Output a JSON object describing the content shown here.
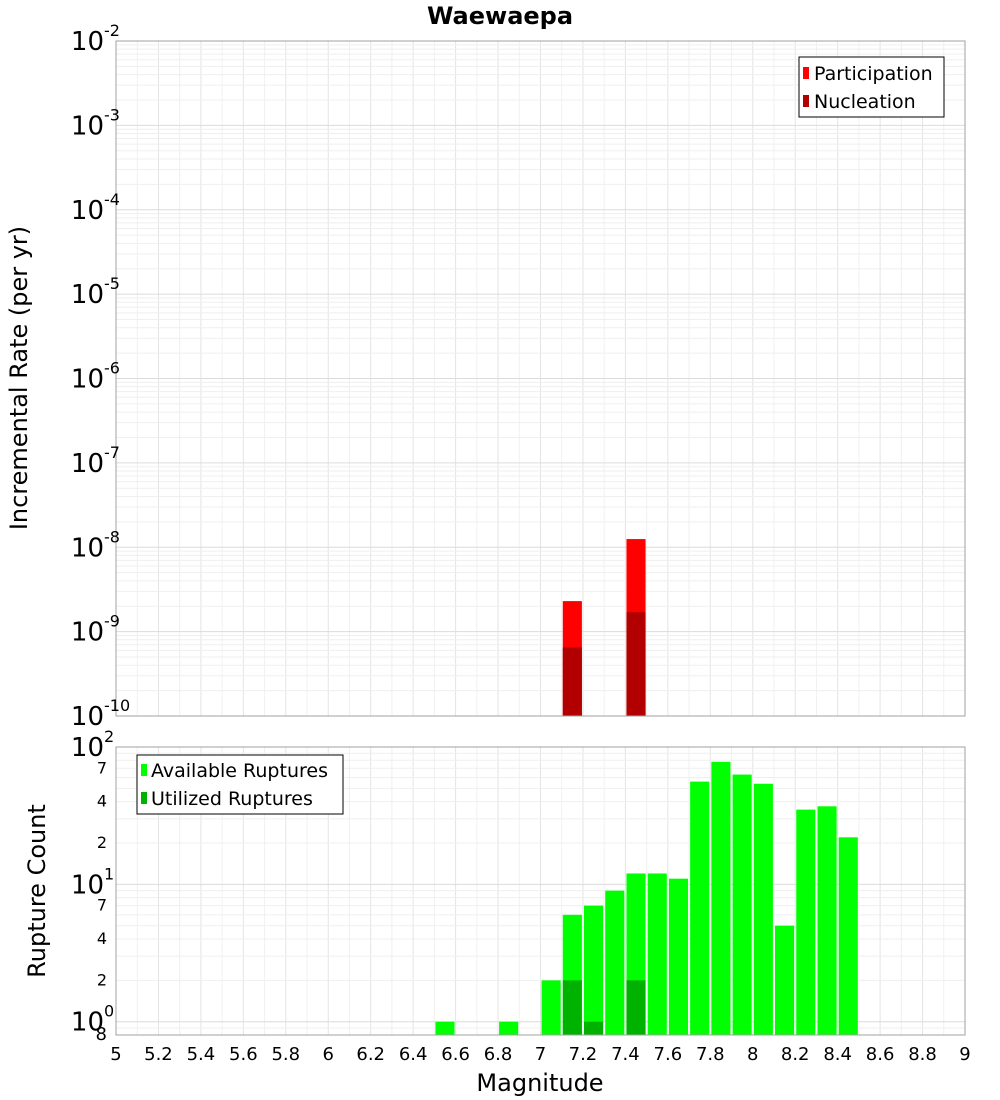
{
  "chart_data": [
    {
      "id": "top",
      "type": "bar",
      "title": "Waewaepa",
      "ylabel": "Incremental Rate (per yr)",
      "xlabel": "",
      "yscale": "log",
      "ylim": [
        1e-10,
        0.01
      ],
      "xlim": [
        5,
        9
      ],
      "grid": true,
      "legend_position": "top-right",
      "bar_width": 0.09,
      "y_ticks": [
        {
          "base": "10",
          "exp": "-10",
          "value": 1e-10
        },
        {
          "base": "10",
          "exp": "-9",
          "value": 1e-09
        },
        {
          "base": "10",
          "exp": "-8",
          "value": 1e-08
        },
        {
          "base": "10",
          "exp": "-7",
          "value": 1e-07
        },
        {
          "base": "10",
          "exp": "-6",
          "value": 1e-06
        },
        {
          "base": "10",
          "exp": "-5",
          "value": 1e-05
        },
        {
          "base": "10",
          "exp": "-4",
          "value": 0.0001
        },
        {
          "base": "10",
          "exp": "-3",
          "value": 0.001
        },
        {
          "base": "10",
          "exp": "-2",
          "value": 0.01
        }
      ],
      "series": [
        {
          "name": "Participation",
          "color": "#ff0000",
          "points": [
            {
              "x": 7.15,
              "y": 2.3e-09
            },
            {
              "x": 7.45,
              "y": 1.25e-08
            }
          ]
        },
        {
          "name": "Nucleation",
          "color": "#b20000",
          "points": [
            {
              "x": 7.15,
              "y": 6.5e-10
            },
            {
              "x": 7.45,
              "y": 1.7e-09
            }
          ]
        }
      ]
    },
    {
      "id": "bottom",
      "type": "bar",
      "title": "",
      "ylabel": "Rupture Count",
      "xlabel": "Magnitude",
      "yscale": "log",
      "ylim": [
        0.8,
        100
      ],
      "xlim": [
        5,
        9
      ],
      "grid": true,
      "legend_position": "top-left",
      "bar_width": 0.09,
      "x_ticks": [
        "5",
        "5.2",
        "5.4",
        "5.6",
        "5.8",
        "6",
        "6.2",
        "6.4",
        "6.6",
        "6.8",
        "7",
        "7.2",
        "7.4",
        "7.6",
        "7.8",
        "8",
        "8.2",
        "8.4",
        "8.6",
        "8.8",
        "9"
      ],
      "y_major_ticks": [
        {
          "base": "10",
          "exp": "0",
          "value": 1
        },
        {
          "base": "10",
          "exp": "1",
          "value": 10
        },
        {
          "base": "10",
          "exp": "2",
          "value": 100
        }
      ],
      "y_minor_ticks": [
        {
          "label": "8",
          "value": 0.8
        },
        {
          "label": "2",
          "value": 2
        },
        {
          "label": "4",
          "value": 4
        },
        {
          "label": "7",
          "value": 7
        },
        {
          "label": "2",
          "value": 20
        },
        {
          "label": "4",
          "value": 40
        },
        {
          "label": "7",
          "value": 70
        }
      ],
      "series": [
        {
          "name": "Available Ruptures",
          "color": "#00ff00",
          "points": [
            {
              "x": 6.55,
              "y": 1
            },
            {
              "x": 6.85,
              "y": 1
            },
            {
              "x": 7.05,
              "y": 2
            },
            {
              "x": 7.15,
              "y": 6
            },
            {
              "x": 7.25,
              "y": 7
            },
            {
              "x": 7.35,
              "y": 9
            },
            {
              "x": 7.45,
              "y": 12
            },
            {
              "x": 7.55,
              "y": 12
            },
            {
              "x": 7.65,
              "y": 11
            },
            {
              "x": 7.75,
              "y": 56
            },
            {
              "x": 7.85,
              "y": 78
            },
            {
              "x": 7.95,
              "y": 63
            },
            {
              "x": 8.05,
              "y": 54
            },
            {
              "x": 8.15,
              "y": 5
            },
            {
              "x": 8.25,
              "y": 35
            },
            {
              "x": 8.35,
              "y": 37
            },
            {
              "x": 8.45,
              "y": 22
            }
          ]
        },
        {
          "name": "Utilized Ruptures",
          "color": "#00b200",
          "points": [
            {
              "x": 7.15,
              "y": 2
            },
            {
              "x": 7.25,
              "y": 1
            },
            {
              "x": 7.45,
              "y": 2
            }
          ]
        }
      ]
    }
  ]
}
